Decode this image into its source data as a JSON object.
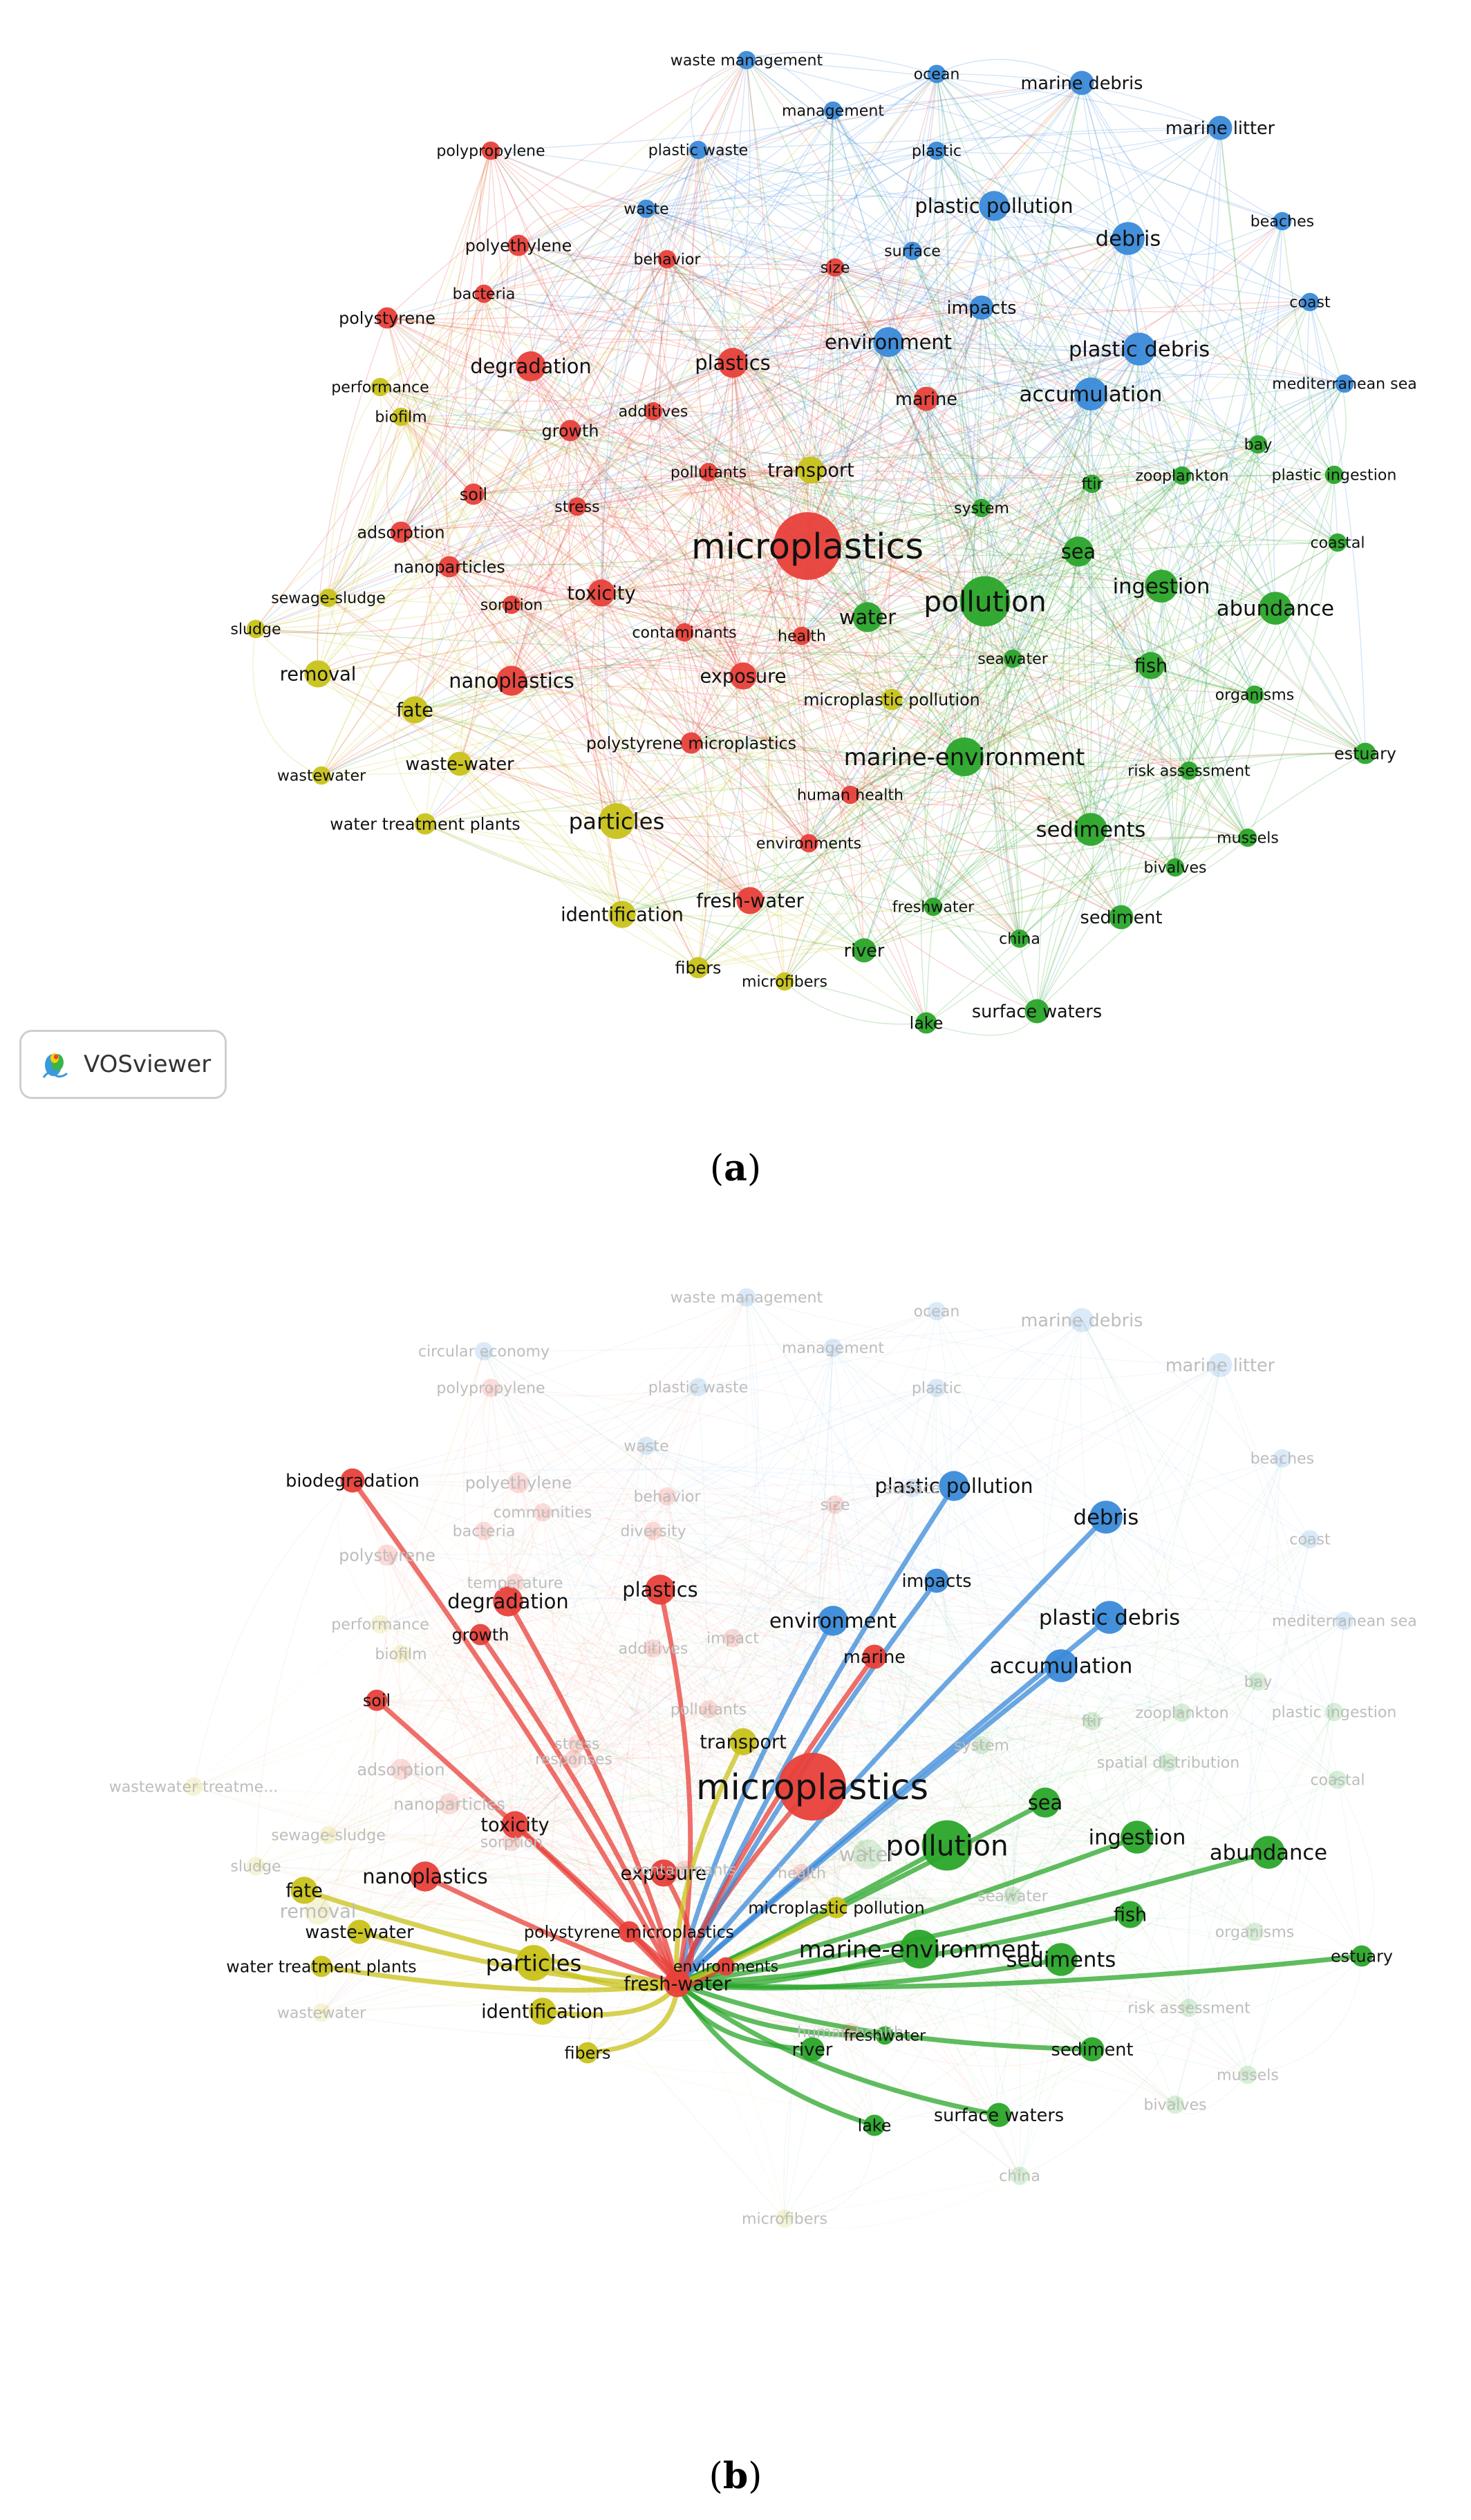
{
  "captions": {
    "a": "a",
    "b": "b"
  },
  "badge": {
    "label": "VOSviewer"
  },
  "colors": {
    "red": "#e8403a",
    "blue": "#3a8ad9",
    "green": "#2aa52a",
    "yellow": "#c8c21a"
  },
  "nodes": [
    {
      "id": "microplastics",
      "label": "microplastics",
      "c": "red",
      "w": 10
    },
    {
      "id": "pollution",
      "label": "pollution",
      "c": "green",
      "w": 7
    },
    {
      "id": "marine-environment",
      "label": "marine-environment",
      "c": "green",
      "w": 5
    },
    {
      "id": "particles",
      "label": "particles",
      "c": "yellow",
      "w": 4.5
    },
    {
      "id": "sediments",
      "label": "sediments",
      "c": "green",
      "w": 4
    },
    {
      "id": "abundance",
      "label": "abundance",
      "c": "green",
      "w": 4
    },
    {
      "id": "ingestion",
      "label": "ingestion",
      "c": "green",
      "w": 4
    },
    {
      "id": "sea",
      "label": "sea",
      "c": "green",
      "w": 3.5
    },
    {
      "id": "water",
      "label": "water",
      "c": "green",
      "w": 3.5
    },
    {
      "id": "fish",
      "label": "fish",
      "c": "green",
      "w": 3
    },
    {
      "id": "plastic-debris",
      "label": "plastic debris",
      "c": "blue",
      "w": 4
    },
    {
      "id": "accumulation",
      "label": "accumulation",
      "c": "blue",
      "w": 4
    },
    {
      "id": "debris",
      "label": "debris",
      "c": "blue",
      "w": 4
    },
    {
      "id": "plastic-pollution",
      "label": "plastic pollution",
      "c": "blue",
      "w": 3.5
    },
    {
      "id": "environment",
      "label": "environment",
      "c": "blue",
      "w": 3.5
    },
    {
      "id": "impacts",
      "label": "impacts",
      "c": "blue",
      "w": 2.5
    },
    {
      "id": "marine-debris",
      "label": "marine debris",
      "c": "blue",
      "w": 2.5
    },
    {
      "id": "marine-litter",
      "label": "marine litter",
      "c": "blue",
      "w": 2.5
    },
    {
      "id": "degradation",
      "label": "degradation",
      "c": "red",
      "w": 3.5
    },
    {
      "id": "plastics",
      "label": "plastics",
      "c": "red",
      "w": 3.5
    },
    {
      "id": "nanoplastics",
      "label": "nanoplastics",
      "c": "red",
      "w": 3.5
    },
    {
      "id": "exposure",
      "label": "exposure",
      "c": "red",
      "w": 3
    },
    {
      "id": "toxicity",
      "label": "toxicity",
      "c": "red",
      "w": 3
    },
    {
      "id": "marine",
      "label": "marine",
      "c": "red",
      "w": 2.5
    },
    {
      "id": "identification",
      "label": "identification",
      "c": "yellow",
      "w": 3
    },
    {
      "id": "fresh-water",
      "label": "fresh-water",
      "c": "red",
      "w": 3
    },
    {
      "id": "fate",
      "label": "fate",
      "c": "yellow",
      "w": 3
    },
    {
      "id": "removal",
      "label": "removal",
      "c": "yellow",
      "w": 3
    },
    {
      "id": "waste-water",
      "label": "waste-water",
      "c": "yellow",
      "w": 2.5
    },
    {
      "id": "transport",
      "label": "transport",
      "c": "yellow",
      "w": 3
    },
    {
      "id": "river",
      "label": "river",
      "c": "green",
      "w": 2.5
    },
    {
      "id": "surface-waters",
      "label": "surface waters",
      "c": "green",
      "w": 2.5
    },
    {
      "id": "sediment",
      "label": "sediment",
      "c": "green",
      "w": 2.5
    },
    {
      "id": "estuary",
      "label": "estuary",
      "c": "green",
      "w": 2
    },
    {
      "id": "polyethylene",
      "label": "polyethylene",
      "c": "red",
      "w": 2
    },
    {
      "id": "polystyrene",
      "label": "polystyrene",
      "c": "red",
      "w": 2
    },
    {
      "id": "polypropylene",
      "label": "polypropylene",
      "c": "red",
      "w": 1.5
    },
    {
      "id": "bacteria",
      "label": "bacteria",
      "c": "red",
      "w": 1.5
    },
    {
      "id": "behavior",
      "label": "behavior",
      "c": "red",
      "w": 1.5
    },
    {
      "id": "size",
      "label": "size",
      "c": "red",
      "w": 1.5
    },
    {
      "id": "growth",
      "label": "growth",
      "c": "red",
      "w": 2
    },
    {
      "id": "additives",
      "label": "additives",
      "c": "red",
      "w": 1.5
    },
    {
      "id": "soil",
      "label": "soil",
      "c": "red",
      "w": 2
    },
    {
      "id": "adsorption",
      "label": "adsorption",
      "c": "red",
      "w": 2
    },
    {
      "id": "nanoparticles",
      "label": "nanoparticles",
      "c": "red",
      "w": 2
    },
    {
      "id": "stress",
      "label": "stress",
      "c": "red",
      "w": 1.5
    },
    {
      "id": "pollutants",
      "label": "pollutants",
      "c": "red",
      "w": 1.5
    },
    {
      "id": "sorption",
      "label": "sorption",
      "c": "red",
      "w": 1.5
    },
    {
      "id": "contaminants",
      "label": "contaminants",
      "c": "red",
      "w": 1.5
    },
    {
      "id": "health",
      "label": "health",
      "c": "red",
      "w": 1.5
    },
    {
      "id": "polystyrene-microplastics",
      "label": "polystyrene microplastics",
      "c": "red",
      "w": 2
    },
    {
      "id": "human-health",
      "label": "human health",
      "c": "red",
      "w": 1.5
    },
    {
      "id": "environments",
      "label": "environments",
      "c": "red",
      "w": 1.5
    },
    {
      "id": "biofilm",
      "label": "biofilm",
      "c": "yellow",
      "w": 1.5
    },
    {
      "id": "performance",
      "label": "performance",
      "c": "yellow",
      "w": 1.5
    },
    {
      "id": "sewage-sludge",
      "label": "sewage-sludge",
      "c": "yellow",
      "w": 1.5
    },
    {
      "id": "sludge",
      "label": "sludge",
      "c": "yellow",
      "w": 1.5
    },
    {
      "id": "wastewater",
      "label": "wastewater",
      "c": "yellow",
      "w": 1.5
    },
    {
      "id": "water-treatment-plants",
      "label": "water treatment plants",
      "c": "yellow",
      "w": 2
    },
    {
      "id": "fibers",
      "label": "fibers",
      "c": "yellow",
      "w": 2
    },
    {
      "id": "microfibers",
      "label": "microfibers",
      "c": "yellow",
      "w": 1.5
    },
    {
      "id": "microplastic-pollution",
      "label": "microplastic pollution",
      "c": "yellow",
      "w": 2
    },
    {
      "id": "waste-management",
      "label": "waste management",
      "c": "blue",
      "w": 1.5
    },
    {
      "id": "management",
      "label": "management",
      "c": "blue",
      "w": 1.5
    },
    {
      "id": "plastic-waste",
      "label": "plastic waste",
      "c": "blue",
      "w": 1.5
    },
    {
      "id": "ocean",
      "label": "ocean",
      "c": "blue",
      "w": 1.5
    },
    {
      "id": "plastic",
      "label": "plastic",
      "c": "blue",
      "w": 1.5
    },
    {
      "id": "waste",
      "label": "waste",
      "c": "blue",
      "w": 1.5
    },
    {
      "id": "surface",
      "label": "surface",
      "c": "blue",
      "w": 1.5
    },
    {
      "id": "beaches",
      "label": "beaches",
      "c": "blue",
      "w": 1.5
    },
    {
      "id": "coast",
      "label": "coast",
      "c": "blue",
      "w": 1.5
    },
    {
      "id": "mediterranean-sea",
      "label": "mediterranean sea",
      "c": "blue",
      "w": 1.5
    },
    {
      "id": "bay",
      "label": "bay",
      "c": "green",
      "w": 1.5
    },
    {
      "id": "zooplankton",
      "label": "zooplankton",
      "c": "green",
      "w": 1.5
    },
    {
      "id": "plastic-ingestion",
      "label": "plastic ingestion",
      "c": "green",
      "w": 1.5
    },
    {
      "id": "coastal",
      "label": "coastal",
      "c": "green",
      "w": 1.5
    },
    {
      "id": "ftir",
      "label": "ftir",
      "c": "green",
      "w": 1.5
    },
    {
      "id": "system",
      "label": "system",
      "c": "green",
      "w": 1.5
    },
    {
      "id": "seawater",
      "label": "seawater",
      "c": "green",
      "w": 1.5
    },
    {
      "id": "organisms",
      "label": "organisms",
      "c": "green",
      "w": 1.5
    },
    {
      "id": "risk-assessment",
      "label": "risk assessment",
      "c": "green",
      "w": 1.5
    },
    {
      "id": "mussels",
      "label": "mussels",
      "c": "green",
      "w": 1.5
    },
    {
      "id": "bivalves",
      "label": "bivalves",
      "c": "green",
      "w": 1.5
    },
    {
      "id": "freshwater",
      "label": "freshwater",
      "c": "green",
      "w": 1.5
    },
    {
      "id": "china",
      "label": "china",
      "c": "green",
      "w": 1.5
    },
    {
      "id": "lake",
      "label": "lake",
      "c": "green",
      "w": 2
    }
  ],
  "panel_b": {
    "highlighted": [
      "microplastics",
      "pollution",
      "marine-environment",
      "particles",
      "sediments",
      "abundance",
      "ingestion",
      "sea",
      "fish",
      "plastic-debris",
      "accumulation",
      "debris",
      "plastic-pollution",
      "environment",
      "impacts",
      "degradation",
      "plastics",
      "nanoplastics",
      "exposure",
      "toxicity",
      "marine",
      "identification",
      "fresh-water",
      "fate",
      "waste-water",
      "transport",
      "river",
      "surface-waters",
      "sediment",
      "estuary",
      "growth",
      "soil",
      "polystyrene-microplastics",
      "environments",
      "water-treatment-plants",
      "fibers",
      "microplastic-pollution",
      "freshwater",
      "lake",
      "biodegradation"
    ],
    "extra_nodes": [
      {
        "id": "biodegradation",
        "label": "biodegradation",
        "c": "red",
        "w": 2.5
      },
      {
        "id": "circular-economy",
        "label": "circular economy",
        "c": "blue",
        "w": 1.5
      },
      {
        "id": "communities",
        "label": "communities",
        "c": "red",
        "w": 1.5
      },
      {
        "id": "diversity",
        "label": "diversity",
        "c": "red",
        "w": 1.5
      },
      {
        "id": "temperature",
        "label": "temperature",
        "c": "red",
        "w": 1.5
      },
      {
        "id": "impact",
        "label": "impact",
        "c": "red",
        "w": 1.5
      },
      {
        "id": "responses",
        "label": "responses",
        "c": "red",
        "w": 1.5
      },
      {
        "id": "spatial-distribution",
        "label": "spatial distribution",
        "c": "green",
        "w": 1.5
      },
      {
        "id": "wastewater-treatment",
        "label": "wastewater treatme...",
        "c": "yellow",
        "w": 1.5
      }
    ]
  }
}
